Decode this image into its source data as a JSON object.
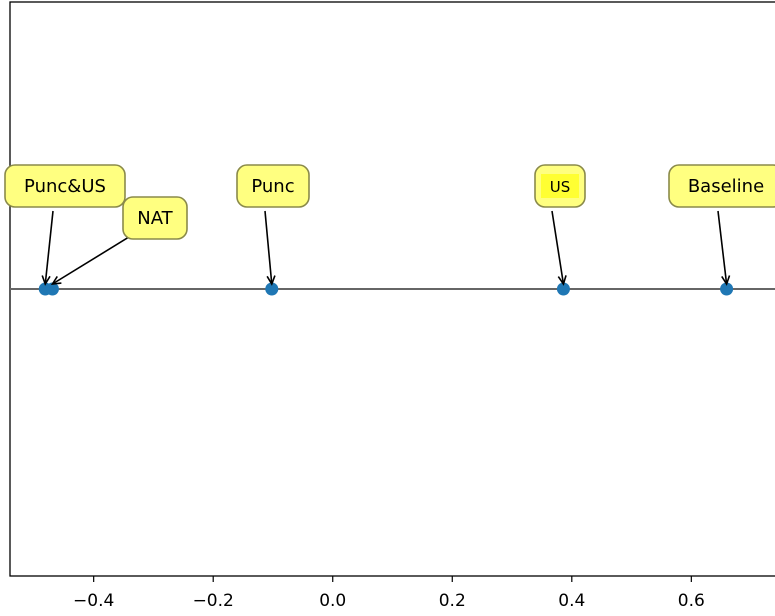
{
  "chart_data": {
    "type": "scatter",
    "title": "",
    "xlabel": "",
    "ylabel": "",
    "xlim": [
      -0.54,
      0.74
    ],
    "ylim": [
      -1,
      1
    ],
    "grid": false,
    "baseline_y": 0,
    "x_ticks": [
      {
        "value": -0.4,
        "label": "−0.4"
      },
      {
        "value": -0.2,
        "label": "−0.2"
      },
      {
        "value": 0.0,
        "label": "0.0"
      },
      {
        "value": 0.2,
        "label": "0.2"
      },
      {
        "value": 0.4,
        "label": "0.4"
      },
      {
        "value": 0.6,
        "label": "0.6"
      }
    ],
    "points": [
      {
        "label": "Punc&US",
        "x": -0.481,
        "y": 0
      },
      {
        "label": "NAT",
        "x": -0.469,
        "y": 0
      },
      {
        "label": "Punc",
        "x": -0.102,
        "y": 0
      },
      {
        "label": "US",
        "x": 0.386,
        "y": 0
      },
      {
        "label": "Baseline",
        "x": 0.659,
        "y": 0
      }
    ],
    "colors": {
      "point": "#1f77b4",
      "label_box": "#ffff80",
      "label_box_highlight": "#ffff33",
      "label_border": "#8a8a4a",
      "baseline": "#666666"
    }
  }
}
